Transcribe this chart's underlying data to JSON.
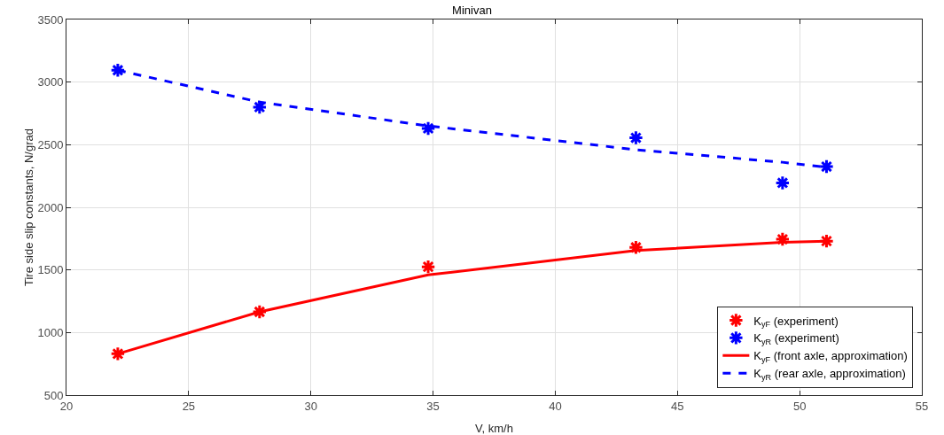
{
  "chart_data": {
    "type": "line",
    "title": "Minivan",
    "xlabel": "V, km/h",
    "ylabel": "Tire side slip constants, N/grad",
    "x": [
      22.1,
      27.9,
      34.8,
      43.3,
      49.3,
      51.1
    ],
    "series": [
      {
        "name": "K$_{yF}$ (experiment)",
        "type": "scatter",
        "marker": "cross",
        "color": "#ff0000",
        "values": [
          830,
          1165,
          1525,
          1680,
          1745,
          1730
        ]
      },
      {
        "name": "K$_{yR}$ (experiment)",
        "type": "scatter",
        "marker": "cross",
        "color": "#0000ff",
        "values": [
          3095,
          2800,
          2630,
          2555,
          2195,
          2325
        ]
      },
      {
        "name": "K$_{yF}$ (front axle, approximation)",
        "type": "line",
        "line_style": "solid",
        "color": "#ff0000",
        "values": [
          830,
          1165,
          1460,
          1655,
          1720,
          1730
        ]
      },
      {
        "name": "K$_{yR}$ (rear axle, approximation)",
        "type": "line",
        "line_style": "dashed",
        "color": "#0000ff",
        "values": [
          3095,
          2840,
          2650,
          2460,
          2360,
          2320
        ]
      }
    ],
    "xlim": [
      20,
      55
    ],
    "xticks": [
      20,
      25,
      30,
      35,
      40,
      45,
      50,
      55
    ],
    "ylim": [
      500,
      3500
    ],
    "yticks": [
      500,
      1000,
      1500,
      2000,
      2500,
      3000,
      3500
    ],
    "grid": true,
    "legend": "bottom right"
  }
}
